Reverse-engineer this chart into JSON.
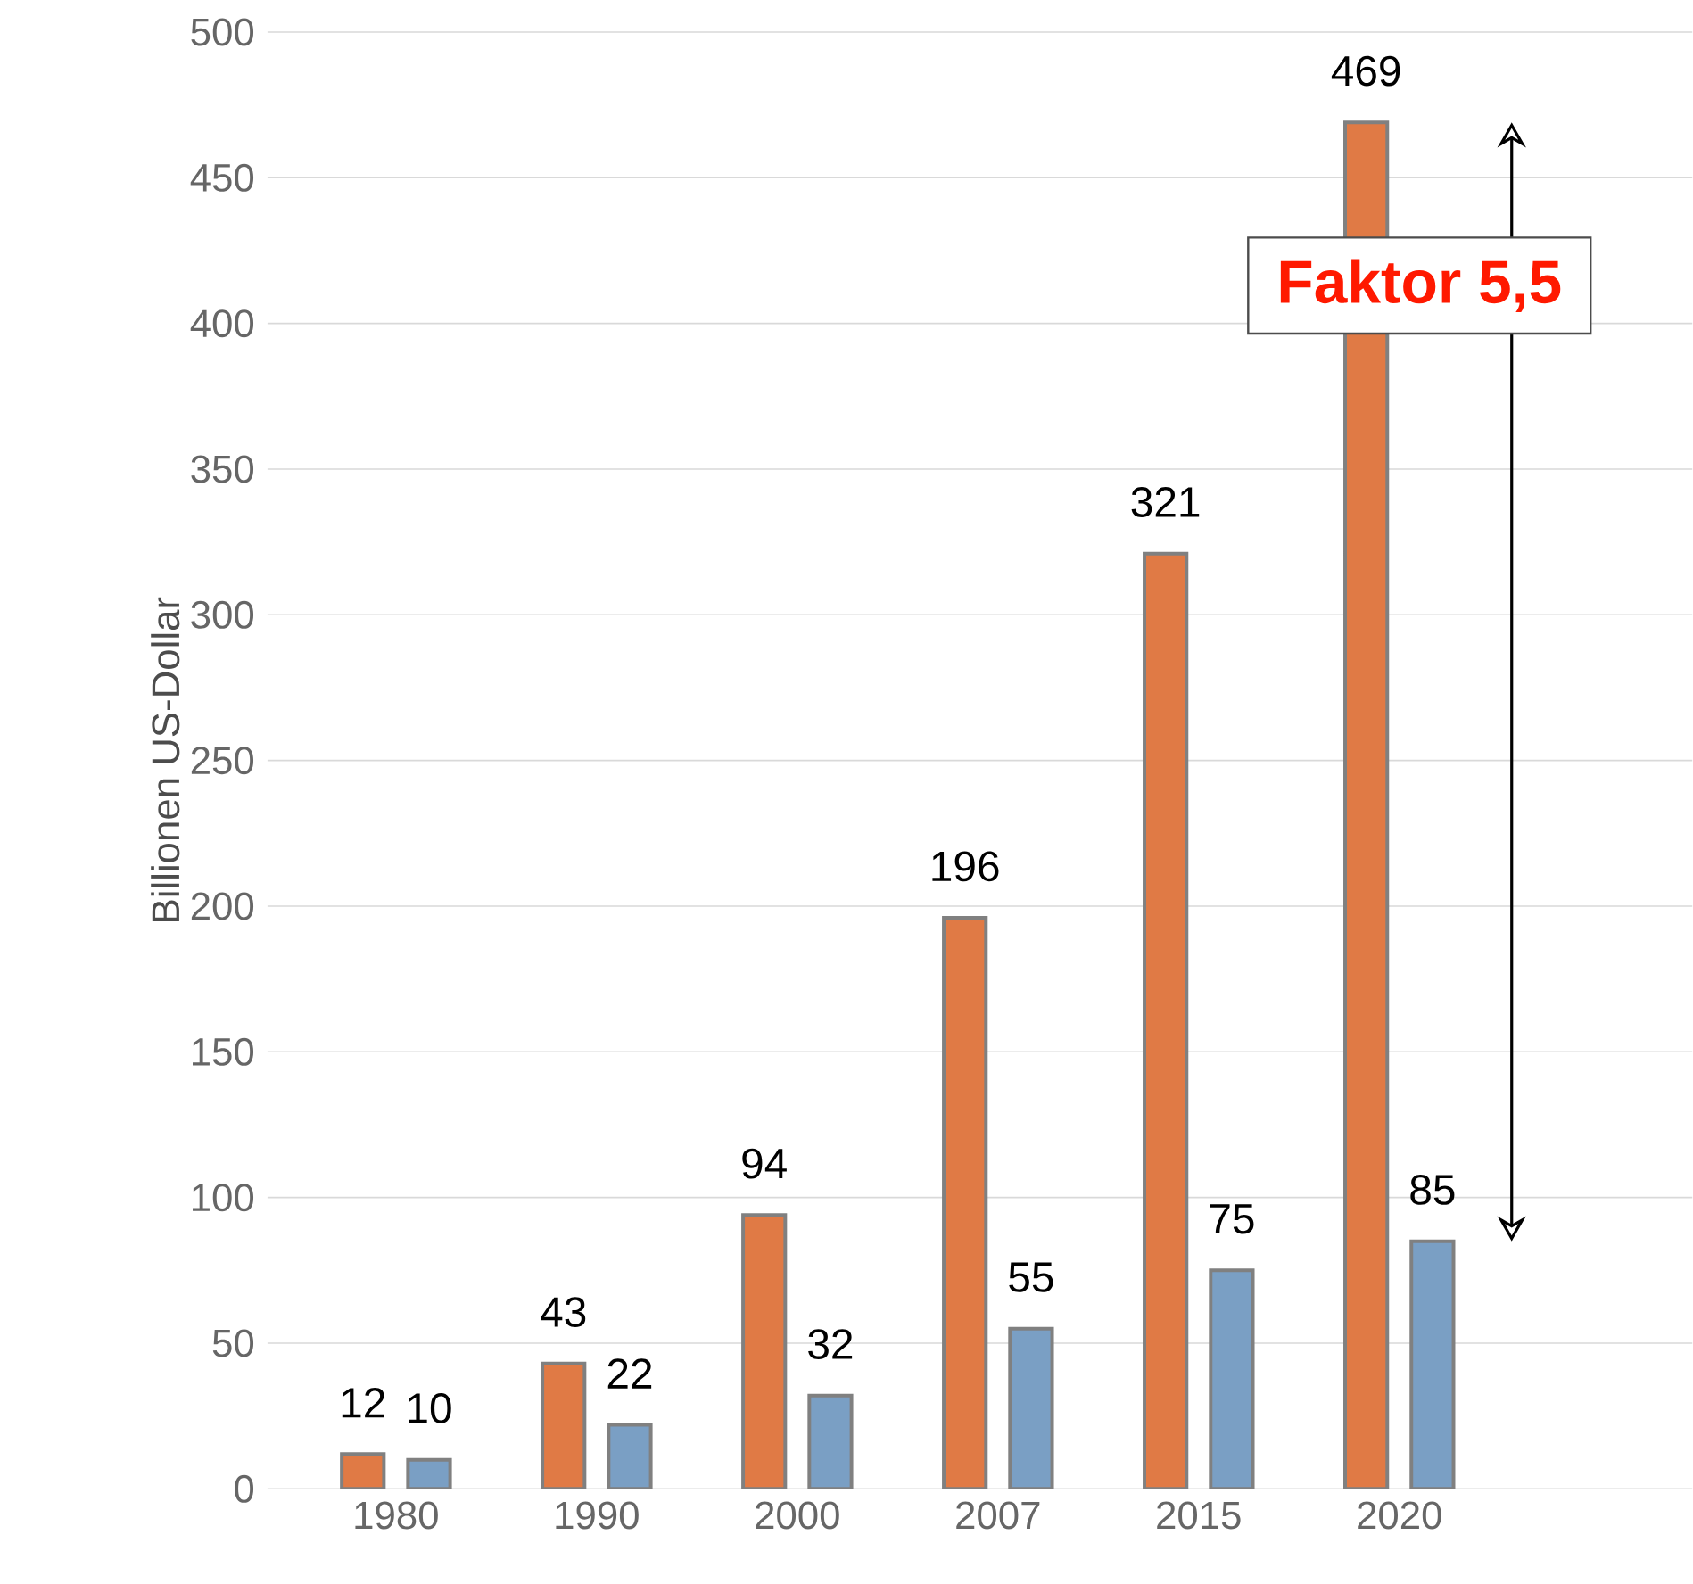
{
  "chart_data": {
    "type": "bar",
    "ylabel": "Billionen US-Dollar",
    "categories": [
      "1980",
      "1990",
      "2000",
      "2007",
      "2015",
      "2020"
    ],
    "series": [
      {
        "color": "#e07a45",
        "values": [
          12,
          43,
          94,
          196,
          321,
          469
        ]
      },
      {
        "color": "#7a9fc4",
        "values": [
          10,
          22,
          32,
          55,
          75,
          85
        ]
      }
    ],
    "ylim": [
      0,
      500
    ],
    "yticks": [
      0,
      50,
      100,
      150,
      200,
      250,
      300,
      350,
      400,
      450,
      500
    ],
    "grid": "y",
    "data_labels": true,
    "annotations": [
      "Faktor 5,5"
    ]
  }
}
